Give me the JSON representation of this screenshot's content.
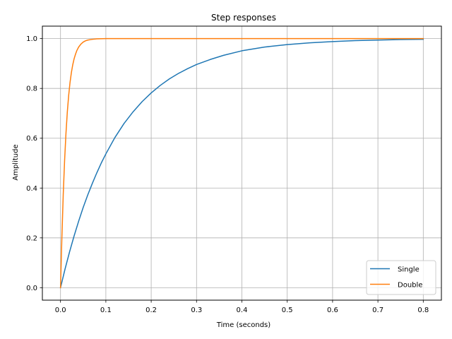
{
  "chart_data": {
    "type": "line",
    "title": "Step responses",
    "xlabel": "Time (seconds)",
    "ylabel": "Amplitude",
    "xlim": [
      -0.04,
      0.84
    ],
    "ylim": [
      -0.05,
      1.05
    ],
    "x_ticks": [
      0.0,
      0.1,
      0.2,
      0.3,
      0.4,
      0.5,
      0.6,
      0.7,
      0.8
    ],
    "x_tick_labels": [
      "0.0",
      "0.1",
      "0.2",
      "0.3",
      "0.4",
      "0.5",
      "0.6",
      "0.7",
      "0.8"
    ],
    "y_ticks": [
      0.0,
      0.2,
      0.4,
      0.6,
      0.8,
      1.0
    ],
    "y_tick_labels": [
      "0.0",
      "0.2",
      "0.4",
      "0.6",
      "0.8",
      "1.0"
    ],
    "grid": true,
    "legend_position": "bottom-right",
    "series": [
      {
        "name": "Single",
        "color": "#1f77b4",
        "x": [
          0.0,
          0.01,
          0.02,
          0.03,
          0.04,
          0.05,
          0.06,
          0.07,
          0.08,
          0.09,
          0.1,
          0.12,
          0.14,
          0.16,
          0.18,
          0.2,
          0.22,
          0.24,
          0.26,
          0.28,
          0.3,
          0.33,
          0.36,
          0.4,
          0.45,
          0.5,
          0.55,
          0.6,
          0.65,
          0.7,
          0.75,
          0.8
        ],
        "y": [
          0.0,
          0.075,
          0.144,
          0.208,
          0.267,
          0.322,
          0.372,
          0.418,
          0.461,
          0.501,
          0.537,
          0.603,
          0.659,
          0.706,
          0.747,
          0.782,
          0.812,
          0.838,
          0.86,
          0.879,
          0.896,
          0.916,
          0.933,
          0.951,
          0.966,
          0.976,
          0.983,
          0.988,
          0.992,
          0.994,
          0.996,
          0.997
        ]
      },
      {
        "name": "Double",
        "color": "#ff7f0e",
        "x": [
          0.0,
          0.003,
          0.006,
          0.009,
          0.012,
          0.015,
          0.018,
          0.021,
          0.024,
          0.027,
          0.03,
          0.033,
          0.036,
          0.04,
          0.045,
          0.05,
          0.055,
          0.06,
          0.07,
          0.08,
          0.1,
          0.2,
          0.4,
          0.6,
          0.8
        ],
        "y": [
          0.0,
          0.2,
          0.373,
          0.51,
          0.619,
          0.705,
          0.772,
          0.824,
          0.864,
          0.895,
          0.919,
          0.937,
          0.952,
          0.966,
          0.978,
          0.986,
          0.991,
          0.994,
          0.997,
          0.999,
          1.0,
          1.0,
          1.0,
          1.0,
          1.0
        ]
      }
    ]
  }
}
